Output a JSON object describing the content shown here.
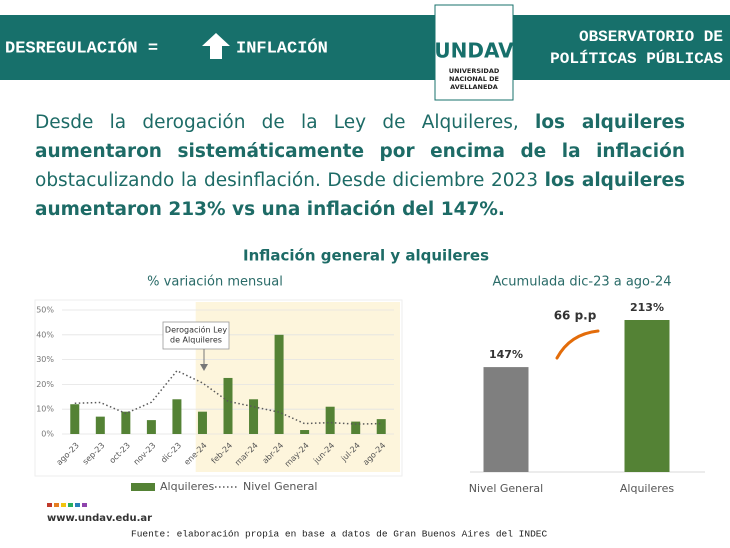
{
  "header": {
    "left": "DESREGULACIÓN =",
    "left_after_icon": "INFLACIÓN",
    "right": [
      "OBSERVATORIO DE",
      "POLÍTICAS PÚBLICAS"
    ]
  },
  "logo": {
    "name": "UNDAV",
    "lines": [
      "UNIVERSIDAD",
      "NACIONAL DE",
      "AVELLANEDA"
    ]
  },
  "paragraph": [
    {
      "text": "Desde la derogación de la Ley de Alquileres, ",
      "bold": false
    },
    {
      "text": "los alquileres aumentaron sistemáticamente por encima de la inflación",
      "bold": true
    },
    {
      "text": " obstaculizando la desinflación. Desde diciembre 2023 ",
      "bold": false
    },
    {
      "text": "los alquileres aumentaron 213% vs una inflación del 147%.",
      "bold": true
    }
  ],
  "section_title": "Inflación general  y alquileres",
  "chart_data": [
    {
      "type": "bar_line",
      "title": "% variación mensual",
      "categories": [
        "ago-23",
        "sep-23",
        "oct-23",
        "nov-23",
        "dic-23",
        "ene-24",
        "feb-24",
        "mar-24",
        "abr-24",
        "may-24",
        "jun-24",
        "jul-24",
        "ago-24"
      ],
      "series": [
        {
          "name": "Alquileres",
          "color": "#548235",
          "kind": "bar",
          "values": [
            12,
            7,
            9,
            5.6,
            14,
            9,
            22.6,
            14,
            40,
            1.6,
            11,
            5,
            6
          ]
        },
        {
          "name": "Nivel General",
          "color": "#595959",
          "kind": "dotted-line",
          "values": [
            12.4,
            12.7,
            8.3,
            12.8,
            25.5,
            20.6,
            13.2,
            11,
            8.8,
            4.2,
            4.6,
            4,
            4.2
          ]
        }
      ],
      "ylim": [
        0,
        50
      ],
      "yticks": [
        {
          "value": 0,
          "label": "0%"
        },
        {
          "value": 10,
          "label": "10%"
        },
        {
          "value": 20,
          "label": "20%"
        },
        {
          "value": 30,
          "label": "30%"
        },
        {
          "value": 40,
          "label": "40%"
        },
        {
          "value": 50,
          "label": "50%"
        }
      ],
      "grid": true,
      "annotation": [
        "Derogación Ley",
        "de Alquileres"
      ]
    },
    {
      "type": "bar",
      "title": "Acumulada dic-23 a ago-24",
      "categories": [
        "Nivel General",
        "Alquileres"
      ],
      "values": [
        147,
        213
      ],
      "value_labels": [
        "147%",
        "213%"
      ],
      "colors": [
        "#7f7f7f",
        "#548235"
      ],
      "annotation": "66 p.p"
    }
  ],
  "footer": {
    "url": "www.undav.edu.ar",
    "source": "Fuente: elaboración propia en base a datos de Gran Buenos Aires del INDEC"
  }
}
